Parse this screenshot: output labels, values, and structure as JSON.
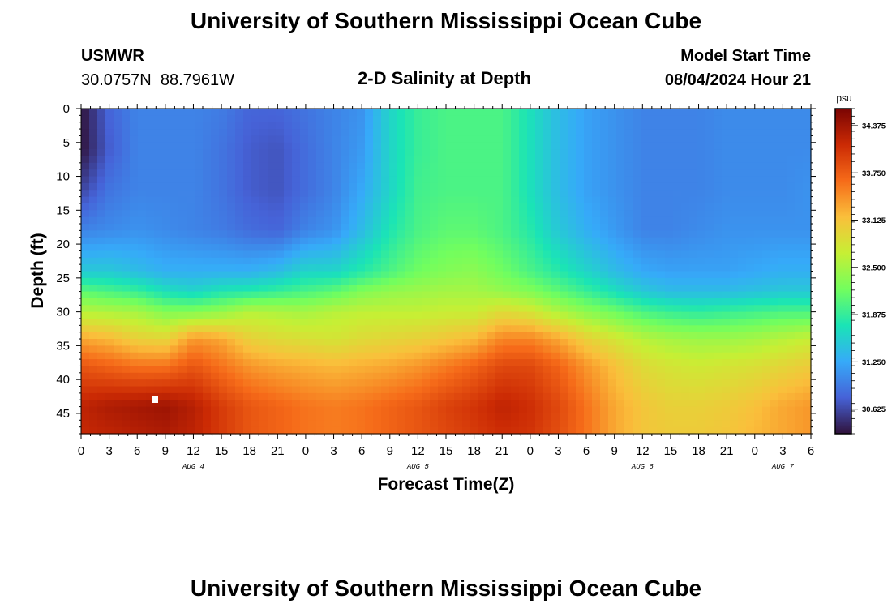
{
  "header": {
    "main_title": "University of Southern Mississippi Ocean Cube",
    "station_id": "USMWR",
    "station_coords": "30.0757N  88.7961W",
    "plot_title": "2-D Salinity at Depth",
    "start_label": "Model Start Time",
    "start_value": "08/04/2024 Hour 21"
  },
  "footer": {
    "main_title": "University of Southern Mississippi Ocean Cube"
  },
  "chart_data": {
    "type": "heatmap",
    "variable": "Salinity",
    "xlabel": "Forecast Time(Z)",
    "ylabel": "Depth (ft)",
    "x_tick_labels": [
      "0",
      "3",
      "6",
      "9",
      "12",
      "15",
      "18",
      "21",
      "0",
      "3",
      "6",
      "9",
      "12",
      "15",
      "18",
      "21",
      "0",
      "3",
      "6",
      "9",
      "12",
      "15",
      "18",
      "21",
      "0",
      "3",
      "6"
    ],
    "x_range_hours": [
      0,
      78
    ],
    "date_labels": [
      {
        "label": "AUG 4",
        "hour": 12
      },
      {
        "label": "AUG 5",
        "hour": 36
      },
      {
        "label": "AUG 6",
        "hour": 60
      },
      {
        "label": "AUG 7",
        "hour": 75
      }
    ],
    "y_tick_labels": [
      "0",
      "5",
      "10",
      "15",
      "20",
      "25",
      "30",
      "35",
      "40",
      "45"
    ],
    "y_range_ft": [
      0,
      48
    ],
    "colorbar": {
      "unit": "psu",
      "range": [
        30.3,
        34.6
      ],
      "ticks": [
        "34.375",
        "33.750",
        "33.125",
        "32.500",
        "31.875",
        "31.250",
        "30.625"
      ],
      "colormap": [
        "#30123b",
        "#4662d7",
        "#36aaf9",
        "#1ae4b6",
        "#72fe5e",
        "#c7ef34",
        "#fabf3b",
        "#f66b19",
        "#cb2a04",
        "#7a0403"
      ]
    },
    "rows_depth_ft": [
      0,
      6,
      12,
      18,
      24,
      27,
      30,
      34,
      38,
      44,
      48
    ],
    "cols_hour": [
      0,
      3,
      6,
      9,
      12,
      15,
      18,
      21,
      24,
      27,
      30,
      33,
      36,
      39,
      42,
      45,
      48,
      51,
      54,
      57,
      60,
      63,
      66,
      69,
      72,
      75,
      78
    ],
    "values_psu": [
      [
        30.3,
        30.8,
        31.0,
        31.0,
        31.0,
        30.95,
        30.8,
        30.8,
        30.9,
        31.0,
        31.1,
        31.6,
        31.9,
        32.0,
        32.0,
        32.0,
        31.7,
        31.4,
        31.2,
        31.1,
        31.0,
        31.0,
        31.0,
        31.05,
        31.05,
        31.05,
        31.05
      ],
      [
        30.3,
        30.75,
        31.0,
        31.0,
        31.0,
        30.9,
        30.75,
        30.7,
        30.85,
        31.0,
        31.15,
        31.6,
        31.9,
        32.0,
        32.0,
        32.0,
        31.7,
        31.4,
        31.2,
        31.1,
        31.0,
        31.0,
        31.0,
        31.05,
        31.05,
        31.05,
        31.05
      ],
      [
        30.6,
        30.9,
        31.0,
        31.0,
        31.0,
        30.9,
        30.75,
        30.7,
        30.85,
        31.0,
        31.25,
        31.6,
        31.95,
        32.0,
        32.0,
        32.0,
        31.7,
        31.4,
        31.2,
        31.1,
        31.0,
        31.0,
        31.0,
        31.05,
        31.05,
        31.05,
        31.1
      ],
      [
        31.0,
        31.05,
        31.1,
        31.05,
        31.0,
        30.95,
        30.85,
        30.8,
        31.0,
        31.1,
        31.4,
        31.75,
        32.0,
        32.1,
        32.1,
        32.0,
        31.8,
        31.5,
        31.3,
        31.15,
        31.0,
        31.0,
        31.05,
        31.1,
        31.1,
        31.1,
        31.1
      ],
      [
        31.5,
        31.5,
        31.4,
        31.3,
        31.3,
        31.3,
        31.3,
        31.4,
        31.6,
        31.6,
        31.8,
        32.0,
        32.2,
        32.3,
        32.35,
        32.2,
        32.0,
        31.8,
        31.6,
        31.4,
        31.25,
        31.2,
        31.2,
        31.2,
        31.25,
        31.3,
        31.3
      ],
      [
        32.1,
        32.0,
        31.9,
        31.7,
        31.6,
        31.75,
        31.8,
        31.9,
        32.0,
        32.1,
        32.3,
        32.4,
        32.45,
        32.5,
        32.5,
        32.4,
        32.3,
        32.1,
        31.9,
        31.7,
        31.5,
        31.4,
        31.4,
        31.4,
        31.45,
        31.5,
        31.5
      ],
      [
        32.6,
        32.55,
        32.5,
        32.3,
        32.3,
        32.4,
        32.6,
        32.55,
        32.5,
        32.6,
        32.65,
        32.65,
        32.65,
        32.7,
        32.7,
        32.9,
        32.8,
        32.55,
        32.35,
        32.2,
        32.0,
        31.9,
        31.85,
        31.9,
        31.95,
        32.0,
        32.0
      ],
      [
        33.3,
        33.2,
        33.0,
        32.95,
        33.4,
        33.3,
        33.0,
        32.9,
        32.85,
        32.8,
        32.9,
        32.95,
        33.0,
        33.1,
        33.2,
        33.5,
        33.5,
        33.3,
        33.0,
        32.8,
        32.6,
        32.5,
        32.45,
        32.45,
        32.5,
        32.6,
        32.7
      ],
      [
        33.8,
        33.7,
        33.6,
        33.6,
        33.8,
        33.6,
        33.4,
        33.3,
        33.25,
        33.2,
        33.25,
        33.3,
        33.4,
        33.55,
        33.7,
        33.9,
        33.9,
        33.7,
        33.4,
        33.15,
        32.9,
        32.8,
        32.75,
        32.8,
        32.85,
        32.95,
        33.05
      ],
      [
        34.2,
        34.3,
        34.35,
        34.4,
        34.25,
        34.0,
        33.8,
        33.7,
        33.6,
        33.55,
        33.6,
        33.7,
        33.8,
        33.95,
        34.05,
        34.2,
        34.1,
        33.9,
        33.6,
        33.3,
        33.1,
        33.0,
        33.0,
        33.05,
        33.15,
        33.3,
        33.4
      ],
      [
        34.15,
        34.2,
        34.25,
        34.3,
        34.2,
        34.0,
        33.8,
        33.7,
        33.6,
        33.55,
        33.6,
        33.7,
        33.8,
        33.9,
        34.0,
        34.1,
        34.05,
        33.85,
        33.6,
        33.3,
        33.1,
        33.05,
        33.05,
        33.1,
        33.2,
        33.3,
        33.4
      ]
    ]
  }
}
